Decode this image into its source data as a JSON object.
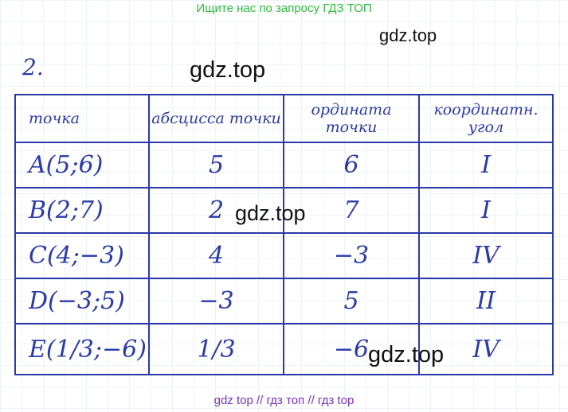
{
  "header_banner": "Ищите нас по запросу ГДЗ ТОП",
  "watermarks": [
    "gdz.top",
    "gdz.top",
    "gdz.top",
    "gdz.top"
  ],
  "exercise_number": "2.",
  "table": {
    "headers": [
      "точка",
      "абсцисса точки",
      "ордината точки",
      "координатн. угол"
    ],
    "rows": [
      [
        "A(5;6)",
        "5",
        "6",
        "I"
      ],
      [
        "B(2;7)",
        "2",
        "7",
        "I"
      ],
      [
        "C(4;−3)",
        "4",
        "−3",
        "IV"
      ],
      [
        "D(−3;5)",
        "−3",
        "5",
        "II"
      ],
      [
        "E(1/3;−6)",
        "1/3",
        "−6",
        "IV"
      ]
    ]
  },
  "footer": "gdz top  //  гдз топ  //  гдз top",
  "colors": {
    "ink": "#2a3aa8",
    "banner": "#2bbf3a",
    "footer": "#7a2fc4"
  }
}
